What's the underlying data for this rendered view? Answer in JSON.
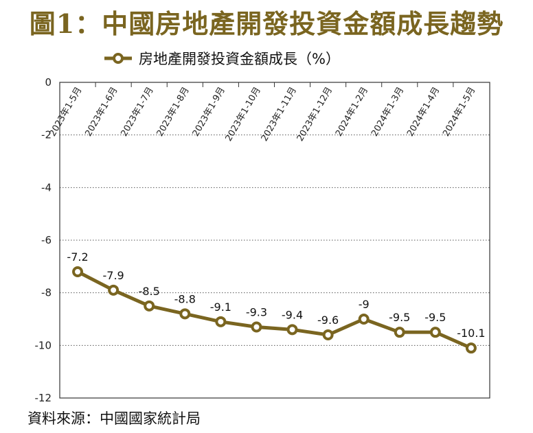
{
  "colors": {
    "series": "#7a6520",
    "title": "#7a6520",
    "grid": "#555555",
    "frame": "#333333"
  },
  "chart_data": {
    "type": "line",
    "title": "圖1：中國房地產開發投資金額成長趨勢",
    "source": "資料來源：中國國家統計局",
    "categories": [
      "2023年1-5月",
      "2023年1-6月",
      "2023年1-7月",
      "2023年1-8月",
      "2023年1-9月",
      "2023年1-10月",
      "2023年1-11月",
      "2023年1-12月",
      "2024年1-2月",
      "2024年1-3月",
      "2024年1-4月",
      "2024年1-5月"
    ],
    "series": [
      {
        "name": "房地產開發投資金額成長（%）",
        "values": [
          -7.2,
          -7.9,
          -8.5,
          -8.8,
          -9.1,
          -9.3,
          -9.4,
          -9.6,
          -9,
          -9.5,
          -9.5,
          -10.1
        ]
      }
    ],
    "data_labels": [
      "-7.2",
      "-7.9",
      "-8.5",
      "-8.8",
      "-9.1",
      "-9.3",
      "-9.4",
      "-9.6",
      "-9",
      "-9.5",
      "-9.5",
      "-10.1"
    ],
    "yticks": [
      "0",
      "-2",
      "-4",
      "-6",
      "-8",
      "-10",
      "-12"
    ],
    "ytick_values": [
      0,
      -2,
      -4,
      -6,
      -8,
      -10,
      -12
    ],
    "ylim": [
      -12,
      0
    ],
    "xlabel": "",
    "ylabel": "",
    "grid": "horizontal-dotted",
    "legend_position": "top-left"
  }
}
